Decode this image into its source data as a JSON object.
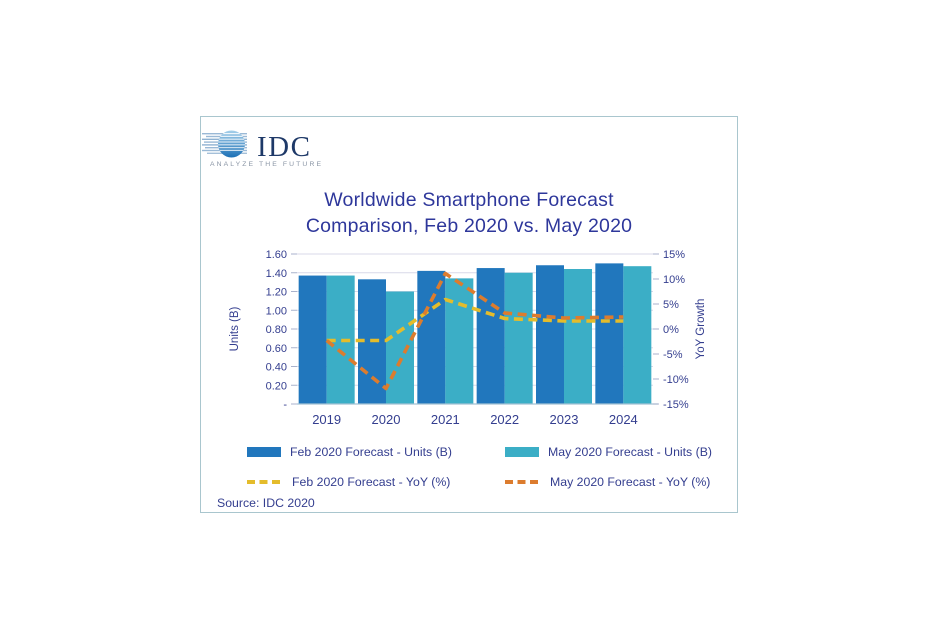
{
  "logo": {
    "text": "IDC",
    "tagline": "ANALYZE THE FUTURE"
  },
  "title": {
    "line1": "Worldwide Smartphone Forecast",
    "line2": "Comparison, Feb 2020 vs. May 2020"
  },
  "source": "Source: IDC 2020",
  "colors": {
    "feb_bar": "#2177BD",
    "may_bar": "#3BAEC6",
    "feb_line": "#E4BC2B",
    "may_line": "#DC7C2E",
    "grid": "#D8D9E8",
    "axis_line": "#A3C2D4",
    "tick": "#A9B2CC",
    "text_navy": "#343E8F",
    "title_navy": "#2E379B",
    "card_border": "#A9C6CE",
    "logo_navy": "#1E3968",
    "logo_blue": "#1C70B6",
    "tagline_gray": "#8A95A5"
  },
  "chart_data": {
    "type": "combo-bar-line",
    "categories": [
      "2019",
      "2020",
      "2021",
      "2022",
      "2023",
      "2024"
    ],
    "series": [
      {
        "name": "Feb 2020 Forecast - Units (B)",
        "type": "bar",
        "axis": "left",
        "color": "#2177BD",
        "values": [
          1.37,
          1.33,
          1.42,
          1.45,
          1.48,
          1.5
        ]
      },
      {
        "name": "May 2020 Forecast - Units (B)",
        "type": "bar",
        "axis": "left",
        "color": "#3BAEC6",
        "values": [
          1.37,
          1.2,
          1.34,
          1.4,
          1.44,
          1.47
        ]
      },
      {
        "name": "Feb 2020 Forecast - YoY (%)",
        "type": "line",
        "axis": "right",
        "color": "#E4BC2B",
        "dashed": true,
        "values": [
          -2.3,
          -2.3,
          5.9,
          2.1,
          1.6,
          1.6
        ]
      },
      {
        "name": "May 2020 Forecast - YoY (%)",
        "type": "line",
        "axis": "right",
        "color": "#DC7C2E",
        "dashed": true,
        "values": [
          -2.3,
          -11.9,
          11.1,
          3.2,
          2.2,
          2.4
        ]
      }
    ],
    "left_axis": {
      "label": "Units  (B)",
      "min": 0,
      "max": 1.6,
      "tick_labels": [
        "1.60",
        "1.40",
        "1.20",
        "1.00",
        "0.80",
        "0.60",
        "0.40",
        "0.20",
        "-"
      ]
    },
    "right_axis": {
      "label": "YoY Growth",
      "min": -15,
      "max": 15,
      "tick_labels": [
        "15%",
        "10%",
        "5%",
        "0%",
        "-5%",
        "-10%",
        "-15%"
      ]
    },
    "grid": true,
    "legend_position": "bottom"
  }
}
